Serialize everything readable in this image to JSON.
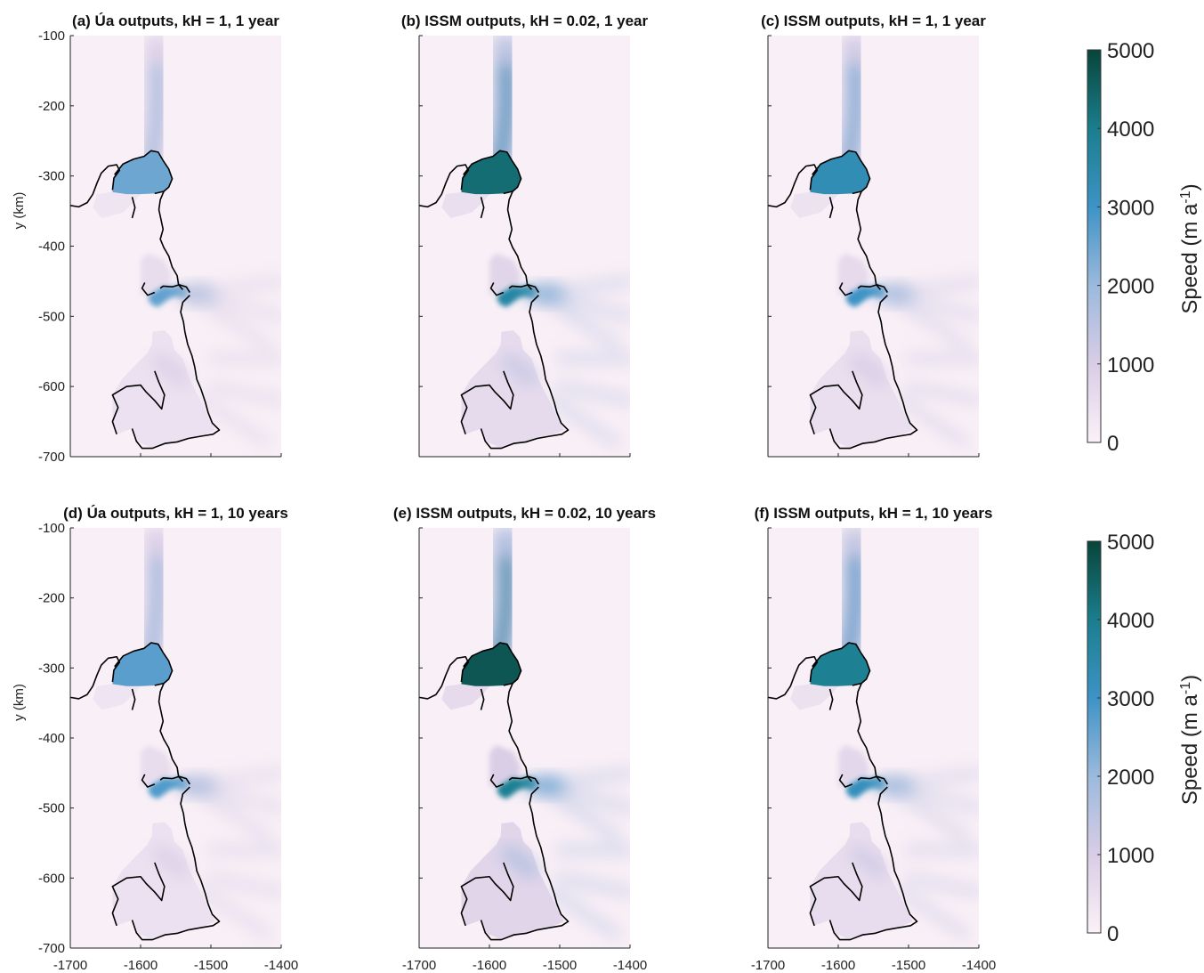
{
  "figure": {
    "units": "km",
    "ylabel": "y (km)",
    "colorbar_label": "Speed (m a",
    "colorbar_label_sup": "-1",
    "colorbar_label_close": ")",
    "colorbar_ticks": [
      "0",
      "1000",
      "2000",
      "3000",
      "4000",
      "5000"
    ]
  },
  "chart_data": [
    {
      "type": "heatmap",
      "title": "(a) Úa outputs, kH = 1, 1 year",
      "xlim": [
        -1700,
        -1400
      ],
      "ylim": [
        -700,
        -100
      ],
      "x_ticks": [],
      "y_ticks": [
        "-100",
        "-200",
        "-300",
        "-400",
        "-500",
        "-600",
        "-700"
      ],
      "peak_speeds": {
        "north_glacier": 2500,
        "middle_glacier": 2600,
        "south_shelf": 800
      }
    },
    {
      "type": "heatmap",
      "title": "(b) ISSM outputs, kH = 0.02, 1 year",
      "xlim": [
        -1700,
        -1400
      ],
      "ylim": [
        -700,
        -100
      ],
      "x_ticks": [],
      "y_ticks": [],
      "peak_speeds": {
        "north_glacier": 4300,
        "middle_glacier": 3600,
        "south_shelf": 1100
      }
    },
    {
      "type": "heatmap",
      "title": "(c) ISSM outputs, kH = 1, 1 year",
      "xlim": [
        -1700,
        -1400
      ],
      "ylim": [
        -700,
        -100
      ],
      "x_ticks": [],
      "y_ticks": [],
      "peak_speeds": {
        "north_glacier": 3300,
        "middle_glacier": 3000,
        "south_shelf": 900
      }
    },
    {
      "type": "heatmap",
      "title": "(d) Úa outputs, kH = 1, 10 years",
      "xlim": [
        -1700,
        -1400
      ],
      "ylim": [
        -700,
        -100
      ],
      "x_ticks": [
        "-1700",
        "-1600",
        "-1500",
        "-1400"
      ],
      "y_ticks": [
        "-100",
        "-200",
        "-300",
        "-400",
        "-500",
        "-600",
        "-700"
      ],
      "peak_speeds": {
        "north_glacier": 2700,
        "middle_glacier": 2800,
        "south_shelf": 800
      }
    },
    {
      "type": "heatmap",
      "title": "(e) ISSM outputs, kH = 0.02, 10 years",
      "xlim": [
        -1700,
        -1400
      ],
      "ylim": [
        -700,
        -100
      ],
      "x_ticks": [
        "-1700",
        "-1600",
        "-1500",
        "-1400"
      ],
      "y_ticks": [],
      "peak_speeds": {
        "north_glacier": 4700,
        "middle_glacier": 3900,
        "south_shelf": 1400
      }
    },
    {
      "type": "heatmap",
      "title": "(f) ISSM outputs, kH = 1, 10 years",
      "xlim": [
        -1700,
        -1400
      ],
      "ylim": [
        -700,
        -100
      ],
      "x_ticks": [
        "-1700",
        "-1600",
        "-1500",
        "-1400"
      ],
      "y_ticks": [],
      "peak_speeds": {
        "north_glacier": 3900,
        "middle_glacier": 3200,
        "south_shelf": 1000
      }
    }
  ],
  "colorbar": {
    "range": [
      0,
      5000
    ],
    "colors": [
      "#fbf1f7",
      "#d9cde6",
      "#9cb9dc",
      "#3d93c6",
      "#1a7e8d",
      "#08453a"
    ]
  }
}
